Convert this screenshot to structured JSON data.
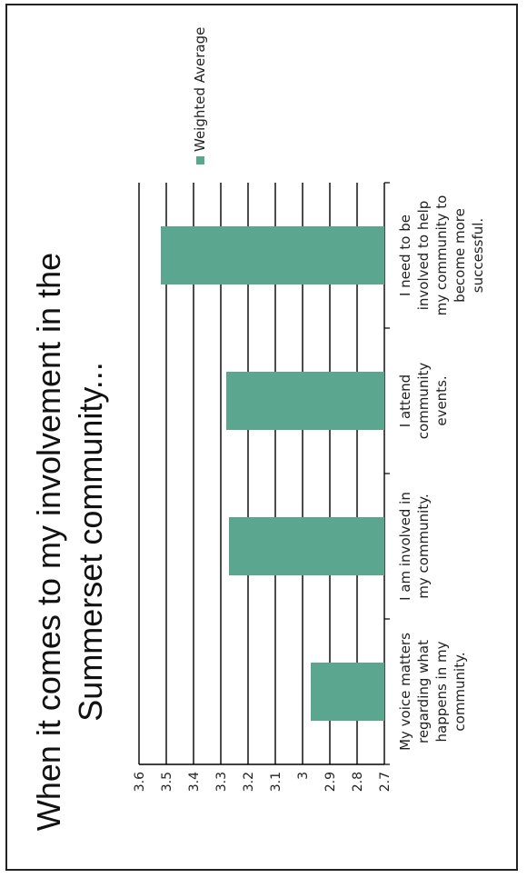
{
  "chart_data": {
    "type": "bar",
    "title_lines": [
      "When it comes to my involvement in the",
      "Summerset community..."
    ],
    "categories": [
      [
        "My voice matters",
        "regarding what",
        "happens in my",
        "community."
      ],
      [
        "I am involved in",
        "my community."
      ],
      [
        "I attend",
        "community",
        "events."
      ],
      [
        "I need to be",
        "involved to help",
        "my community to",
        "become more",
        "successful."
      ]
    ],
    "series": [
      {
        "name": "Weighted Average",
        "values": [
          2.97,
          3.27,
          3.28,
          3.52
        ]
      }
    ],
    "ylim": [
      2.7,
      3.6
    ],
    "yticks": [
      "2.7",
      "2.8",
      "2.9",
      "3",
      "3.1",
      "3.2",
      "3.3",
      "3.4",
      "3.5",
      "3.6"
    ],
    "grid": true,
    "legend": "right",
    "colors": {
      "bar": "#5ba68e",
      "grid": "#000000"
    }
  }
}
